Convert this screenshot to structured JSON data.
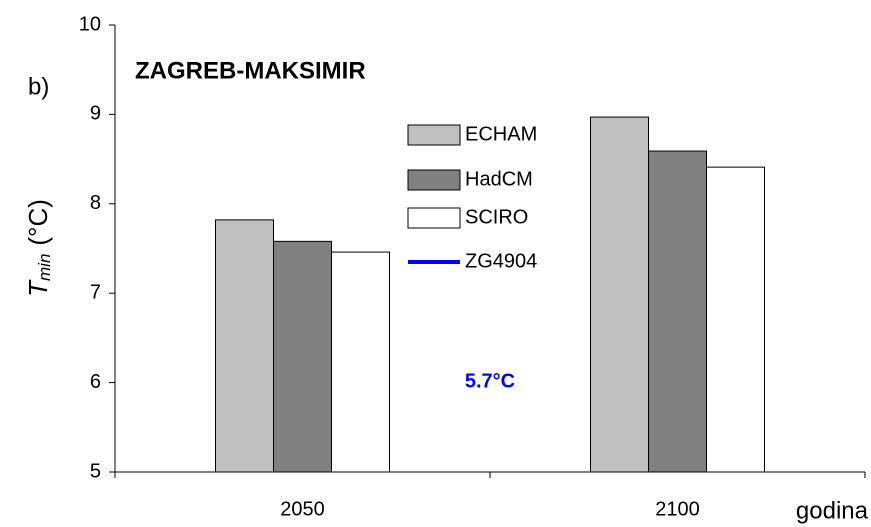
{
  "chart_data": {
    "type": "bar",
    "title": "ZAGREB-MAKSIMIR",
    "panel_label": "b)",
    "y_label": "T",
    "y_label_subscript": "min",
    "y_label_unit": "(°C)",
    "x_label": "godina",
    "annotation": "5.7°C",
    "annotation_color": "#0000ff",
    "categories": [
      "2050",
      "2100"
    ],
    "series": [
      {
        "name": "ECHAM",
        "color": "#c0c0c0",
        "values": [
          7.82,
          8.97
        ]
      },
      {
        "name": "HadCM",
        "color": "#808080",
        "values": [
          7.58,
          8.59
        ]
      },
      {
        "name": "SCIRO",
        "color": "#ffffff",
        "values": [
          7.46,
          8.41
        ]
      },
      {
        "name": "ZG4904",
        "color": "#0000ff",
        "type": "line",
        "values": [
          null,
          null
        ]
      }
    ],
    "ylim": [
      5,
      10
    ],
    "yticks": [
      5,
      6,
      7,
      8,
      9,
      10
    ],
    "grid": false
  }
}
